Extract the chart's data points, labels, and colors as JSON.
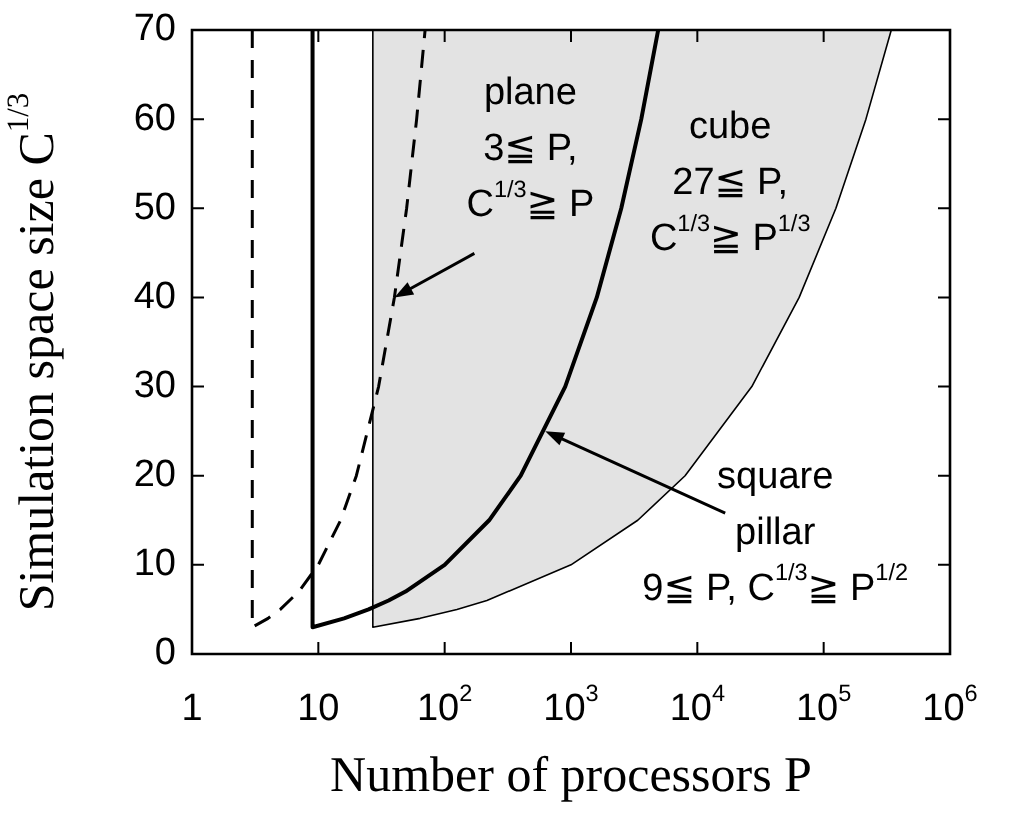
{
  "chart_data": {
    "type": "line",
    "xlabel": "Number of processors P",
    "ylabel": "Simulation space size C$^{1/3}$",
    "log": "x",
    "xlim": [
      1,
      1000000
    ],
    "ylim": [
      0,
      70
    ],
    "xticks": [
      1,
      10,
      {
        "value": 100,
        "label": "10$^{2}$"
      },
      {
        "value": 1000,
        "label": "10$^{3}$"
      },
      {
        "value": 10000,
        "label": "10$^{4}$"
      },
      {
        "value": 100000,
        "label": "10$^{5}$"
      },
      {
        "value": 1000000,
        "label": "10$^{6}$"
      }
    ],
    "yticks": [
      0,
      10,
      20,
      30,
      40,
      50,
      60,
      70
    ],
    "grid": false,
    "legend": false,
    "marker": "none",
    "series": [
      {
        "color": "#000000",
        "line_style": "dashed",
        "x": [
          3,
          3,
          4,
          5,
          7,
          10,
          15,
          20,
          30,
          40,
          50,
          60,
          70
        ],
        "values": [
          70,
          3,
          4,
          5,
          7,
          10,
          15,
          20,
          30,
          40,
          50,
          60,
          70
        ]
      },
      {
        "color": "#000000",
        "line_style": "solid",
        "x": [
          9,
          9,
          16,
          25,
          36,
          49,
          100,
          225,
          400,
          900,
          1600,
          2500,
          3600,
          4900
        ],
        "values": [
          70,
          3,
          4,
          5,
          6,
          7,
          10,
          15,
          20,
          30,
          40,
          50,
          60,
          70
        ]
      },
      {
        "type": "area",
        "color": "#000000",
        "line_style": "solid",
        "x": [
          27,
          27,
          64,
          125,
          216,
          1000,
          3375,
          8000,
          27000,
          64000,
          125000,
          216000,
          343000
        ],
        "values": [
          70,
          3,
          4,
          5,
          6,
          10,
          15,
          20,
          30,
          40,
          50,
          60,
          70
        ]
      }
    ],
    "annotations": [
      {
        "text": "plane\n3≦ P,\nC$^{1/3}$≧ P",
        "x": 40,
        "y": 40
      },
      "cube\n27≦ P,\nC$^{1/3}$≧ P$^{1/3}$",
      {
        "text": "square\npillar\n9≦ P, C$^{1/3}$≧ P$^{1/2}$",
        "x": 625,
        "y": 25
      }
    ]
  }
}
